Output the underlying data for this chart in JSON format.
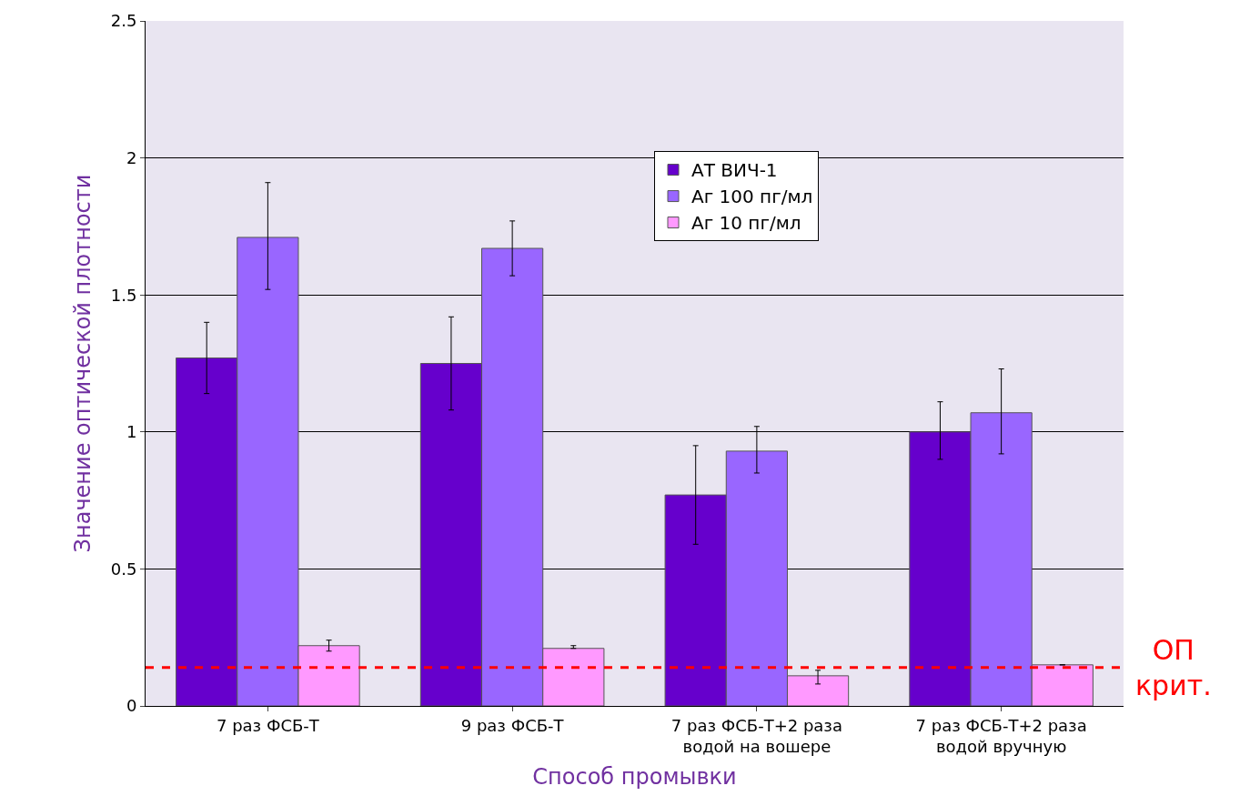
{
  "chart_data": {
    "type": "bar",
    "xlabel": "Способ промывки",
    "ylabel": "Значение оптической плотности",
    "categories": [
      "7 раз ФСБ-Т",
      "9 раз ФСБ-Т",
      "7 раз ФСБ-Т+2 раза водой на вошере",
      "7 раз ФСБ-Т+2 раза водой вручную"
    ],
    "series": [
      {
        "name": "АТ ВИЧ-1",
        "color": "#6600cc",
        "values": [
          1.27,
          1.25,
          0.77,
          1.0
        ],
        "errors": [
          [
            1.14,
            1.4
          ],
          [
            1.08,
            1.42
          ],
          [
            0.59,
            0.95
          ],
          [
            0.9,
            1.11
          ]
        ]
      },
      {
        "name": "Аг 100 пг/мл",
        "color": "#9966ff",
        "values": [
          1.71,
          1.67,
          0.93,
          1.07
        ],
        "errors": [
          [
            1.52,
            1.91
          ],
          [
            1.57,
            1.77
          ],
          [
            0.85,
            1.02
          ],
          [
            0.92,
            1.23
          ]
        ]
      },
      {
        "name": "Аг 10 пг/мл",
        "color": "#ff99ff",
        "values": [
          0.22,
          0.21,
          0.11,
          0.15
        ],
        "errors": [
          [
            0.2,
            0.24
          ],
          [
            0.21,
            0.22
          ],
          [
            0.08,
            0.13
          ],
          null
        ]
      }
    ],
    "ylim": [
      0,
      2.5
    ],
    "yticks": [
      0,
      0.5,
      1,
      1.5,
      2,
      2.5
    ],
    "grid": "y",
    "legend": "top right",
    "ref_lines": [
      {
        "axis": "y",
        "value": 0.14,
        "label": "ОП крит.",
        "color": "#ff0000",
        "line_style": "dashed"
      }
    ]
  }
}
